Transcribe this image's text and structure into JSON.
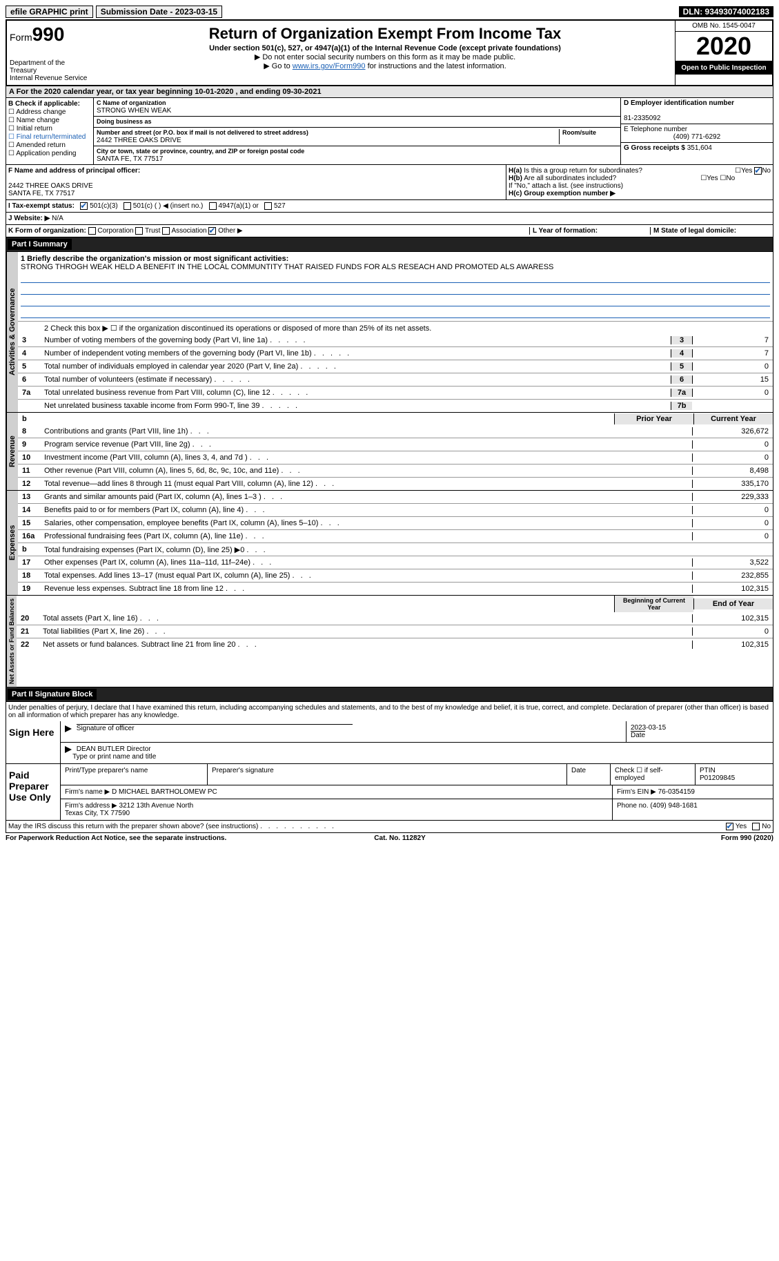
{
  "top": {
    "efile": "efile GRAPHIC print",
    "subdate_lbl": "Submission Date - 2023-03-15",
    "dln": "DLN: 93493074002183"
  },
  "header": {
    "form": "Form",
    "num": "990",
    "dept": "Department of the Treasury",
    "irs": "Internal Revenue Service",
    "title": "Return of Organization Exempt From Income Tax",
    "sub": "Under section 501(c), 527, or 4947(a)(1) of the Internal Revenue Code (except private foundations)",
    "note1": "▶ Do not enter social security numbers on this form as it may be made public.",
    "note2a": "▶ Go to ",
    "note2link": "www.irs.gov/Form990",
    "note2b": " for instructions and the latest information.",
    "omb": "OMB No. 1545-0047",
    "year": "2020",
    "open": "Open to Public Inspection"
  },
  "period": {
    "a": "A  For the 2020 calendar year, or tax year beginning 10-01-2020   , and ending 09-30-2021",
    "b_lbl": "B Check if applicable:",
    "b_items": [
      "Address change",
      "Name change",
      "Initial return",
      "Final return/terminated",
      "Amended return",
      "Application pending"
    ]
  },
  "C": {
    "name_lbl": "C Name of organization",
    "name": "STRONG WHEN WEAK",
    "dba_lbl": "Doing business as",
    "dba": "",
    "addr_lbl": "Number and street (or P.O. box if mail is not delivered to street address)",
    "addr": "2442 THREE OAKS DRIVE",
    "room_lbl": "Room/suite",
    "city_lbl": "City or town, state or province, country, and ZIP or foreign postal code",
    "city": "SANTA FE, TX  77517"
  },
  "D": {
    "ein_lbl": "D Employer identification number",
    "ein": "81-2335092",
    "tel_lbl": "E Telephone number",
    "tel": "(409) 771-6292",
    "gross_lbl": "G Gross receipts $",
    "gross": "351,604"
  },
  "F": {
    "lbl": "F Name and address of principal officer:",
    "addr": "2442 THREE OAKS DRIVE\nSANTA FE, TX  77517"
  },
  "H": {
    "a": "H(a)  Is this a group return for subordinates?",
    "b": "H(b)  Are all subordinates included?",
    "note": "If \"No,\" attach a list. (see instructions)",
    "c": "H(c)  Group exemption number ▶"
  },
  "I": {
    "lbl": "I  Tax-exempt status:",
    "opts": [
      "501(c)(3)",
      "501(c) (  ) ◀ (insert no.)",
      "4947(a)(1) or",
      "527"
    ]
  },
  "J": {
    "lbl": "J  Website: ▶",
    "val": "N/A"
  },
  "K": {
    "lbl": "K Form of organization:",
    "opts": [
      "Corporation",
      "Trust",
      "Association",
      "Other ▶"
    ],
    "l_lbl": "L Year of formation:",
    "m_lbl": "M State of legal domicile:"
  },
  "part1": {
    "title": "Part I    Summary",
    "m_lbl": "1  Briefly describe the organization's mission or most significant activities:",
    "mission": "STRONG THROGH WEAK HELD A BENEFIT IN THE LOCAL COMMUNTITY THAT RAISED FUNDS FOR ALS RESEACH AND PROMOTED ALS AWARESS",
    "line2": "2  Check this box ▶ ☐ if the organization discontinued its operations or disposed of more than 25% of its net assets."
  },
  "sections": {
    "gov": "Activities & Governance",
    "rev": "Revenue",
    "exp": "Expenses",
    "net": "Net Assets or Fund Balances"
  },
  "gov_lines": [
    {
      "n": "3",
      "d": "Number of voting members of the governing body (Part VI, line 1a)",
      "b": "3",
      "v": "7"
    },
    {
      "n": "4",
      "d": "Number of independent voting members of the governing body (Part VI, line 1b)",
      "b": "4",
      "v": "7"
    },
    {
      "n": "5",
      "d": "Total number of individuals employed in calendar year 2020 (Part V, line 2a)",
      "b": "5",
      "v": "0"
    },
    {
      "n": "6",
      "d": "Total number of volunteers (estimate if necessary)",
      "b": "6",
      "v": "15"
    },
    {
      "n": "7a",
      "d": "Total unrelated business revenue from Part VIII, column (C), line 12",
      "b": "7a",
      "v": "0"
    },
    {
      "n": "",
      "d": "Net unrelated business taxable income from Form 990-T, line 39",
      "b": "7b",
      "v": ""
    }
  ],
  "cols": {
    "prior": "Prior Year",
    "curr": "Current Year",
    "boc": "Beginning of Current Year",
    "eoy": "End of Year"
  },
  "rev_lines": [
    {
      "n": "8",
      "d": "Contributions and grants (Part VIII, line 1h)",
      "p": "",
      "v": "326,672"
    },
    {
      "n": "9",
      "d": "Program service revenue (Part VIII, line 2g)",
      "p": "",
      "v": "0"
    },
    {
      "n": "10",
      "d": "Investment income (Part VIII, column (A), lines 3, 4, and 7d )",
      "p": "",
      "v": "0"
    },
    {
      "n": "11",
      "d": "Other revenue (Part VIII, column (A), lines 5, 6d, 8c, 9c, 10c, and 11e)",
      "p": "",
      "v": "8,498"
    },
    {
      "n": "12",
      "d": "Total revenue—add lines 8 through 11 (must equal Part VIII, column (A), line 12)",
      "p": "",
      "v": "335,170"
    }
  ],
  "exp_lines": [
    {
      "n": "13",
      "d": "Grants and similar amounts paid (Part IX, column (A), lines 1–3 )",
      "p": "",
      "v": "229,333"
    },
    {
      "n": "14",
      "d": "Benefits paid to or for members (Part IX, column (A), line 4)",
      "p": "",
      "v": "0"
    },
    {
      "n": "15",
      "d": "Salaries, other compensation, employee benefits (Part IX, column (A), lines 5–10)",
      "p": "",
      "v": "0"
    },
    {
      "n": "16a",
      "d": "Professional fundraising fees (Part IX, column (A), line 11e)",
      "p": "",
      "v": "0"
    },
    {
      "n": "b",
      "d": "Total fundraising expenses (Part IX, column (D), line 25) ▶0",
      "p": "shade",
      "v": "shade"
    },
    {
      "n": "17",
      "d": "Other expenses (Part IX, column (A), lines 11a–11d, 11f–24e)",
      "p": "",
      "v": "3,522"
    },
    {
      "n": "18",
      "d": "Total expenses. Add lines 13–17 (must equal Part IX, column (A), line 25)",
      "p": "",
      "v": "232,855"
    },
    {
      "n": "19",
      "d": "Revenue less expenses. Subtract line 18 from line 12",
      "p": "",
      "v": "102,315"
    }
  ],
  "net_lines": [
    {
      "n": "20",
      "d": "Total assets (Part X, line 16)",
      "p": "",
      "v": "102,315"
    },
    {
      "n": "21",
      "d": "Total liabilities (Part X, line 26)",
      "p": "",
      "v": "0"
    },
    {
      "n": "22",
      "d": "Net assets or fund balances. Subtract line 21 from line 20",
      "p": "",
      "v": "102,315"
    }
  ],
  "part2": {
    "title": "Part II    Signature Block",
    "decl": "Under penalties of perjury, I declare that I have examined this return, including accompanying schedules and statements, and to the best of my knowledge and belief, it is true, correct, and complete. Declaration of preparer (other than officer) is based on all information of which preparer has any knowledge.",
    "sign_lbl": "Sign Here",
    "sig_officer": "Signature of officer",
    "date": "Date",
    "sig_date": "2023-03-15",
    "name_lbl": "Type or print name and title",
    "name": "DEAN BUTLER  Director",
    "paid_lbl": "Paid Preparer Use Only",
    "prep_name_lbl": "Print/Type preparer's name",
    "prep_sig_lbl": "Preparer's signature",
    "check_lbl": "Check ☐ if self-employed",
    "ptin_lbl": "PTIN",
    "ptin": "P01209845",
    "firm_lbl": "Firm's name ▶",
    "firm": "D MICHAEL BARTHOLOMEW PC",
    "fein_lbl": "Firm's EIN ▶",
    "fein": "76-0354159",
    "faddr_lbl": "Firm's address ▶",
    "faddr": "3212 13th Avenue North\nTexas City, TX  77590",
    "phone_lbl": "Phone no.",
    "phone": "(409) 948-1681",
    "discuss": "May the IRS discuss this return with the preparer shown above? (see instructions)"
  },
  "footer": {
    "l": "For Paperwork Reduction Act Notice, see the separate instructions.",
    "m": "Cat. No. 11282Y",
    "r": "Form 990 (2020)"
  }
}
